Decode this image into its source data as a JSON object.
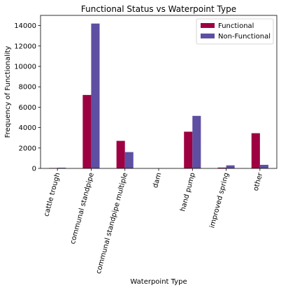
{
  "chart_data": {
    "type": "bar",
    "title": "Functional Status vs Waterpoint Type",
    "xlabel": "Waterpoint Type",
    "ylabel": "Frequency of Functionality",
    "categories": [
      "cattle trough",
      "communal standpipe",
      "communal standpipe multiple",
      "dam",
      "hand pump",
      "improved spring",
      "other"
    ],
    "series": [
      {
        "name": "Functional",
        "color": "#9e0142",
        "values": [
          40,
          7200,
          2700,
          5,
          3600,
          80,
          3450
        ]
      },
      {
        "name": "Non-Functional",
        "color": "#5e4fa2",
        "values": [
          70,
          14200,
          1600,
          5,
          5150,
          300,
          350
        ]
      }
    ],
    "ylim": [
      0,
      15000
    ],
    "yticks": [
      0,
      2000,
      4000,
      6000,
      8000,
      10000,
      12000,
      14000
    ],
    "legend_position": "top-right",
    "grid": false
  }
}
